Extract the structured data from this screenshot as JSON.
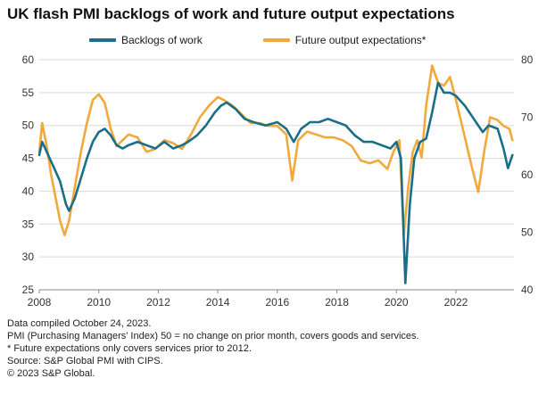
{
  "title": "UK flash PMI backlogs of work and future output expectations",
  "footnotes": [
    "Data compiled October 24, 2023.",
    "PMI (Purchasing Managers' Index) 50 = no change on prior month, covers goods and services.",
    "* Future expectations only covers services prior to 2012.",
    "Source: S&P Global PMI with CIPS.",
    "© 2023 S&P Global."
  ],
  "colors": {
    "backlogs": "#1a6e87",
    "future": "#f2a93b",
    "grid": "#d9d9d9"
  },
  "chart_data": {
    "type": "line",
    "title": "UK flash PMI backlogs of work and future output expectations",
    "x_ticks": [
      "2008",
      "2010",
      "2012",
      "2014",
      "2016",
      "2018",
      "2020",
      "2022"
    ],
    "y_left": {
      "min": 25,
      "max": 60,
      "ticks": [
        25,
        30,
        35,
        40,
        45,
        50,
        55,
        60
      ]
    },
    "y_right": {
      "min": 40,
      "max": 80,
      "ticks": [
        40,
        50,
        60,
        70,
        80
      ]
    },
    "grid": true,
    "legend_position": "top",
    "series": [
      {
        "name": "Backlogs of work",
        "axis": "left",
        "points": [
          [
            2008.0,
            45.5
          ],
          [
            2008.1,
            47.5
          ],
          [
            2008.3,
            45.5
          ],
          [
            2008.5,
            43.5
          ],
          [
            2008.7,
            41.5
          ],
          [
            2008.9,
            38.0
          ],
          [
            2009.0,
            37.0
          ],
          [
            2009.2,
            39.0
          ],
          [
            2009.4,
            42.0
          ],
          [
            2009.6,
            45.0
          ],
          [
            2009.8,
            47.5
          ],
          [
            2010.0,
            49.0
          ],
          [
            2010.2,
            49.5
          ],
          [
            2010.4,
            48.5
          ],
          [
            2010.6,
            47.0
          ],
          [
            2010.8,
            46.5
          ],
          [
            2011.0,
            47.0
          ],
          [
            2011.3,
            47.5
          ],
          [
            2011.6,
            47.0
          ],
          [
            2011.9,
            46.5
          ],
          [
            2012.2,
            47.5
          ],
          [
            2012.5,
            46.5
          ],
          [
            2012.8,
            47.0
          ],
          [
            2013.0,
            47.5
          ],
          [
            2013.3,
            48.5
          ],
          [
            2013.6,
            50.0
          ],
          [
            2013.9,
            52.0
          ],
          [
            2014.1,
            53.0
          ],
          [
            2014.3,
            53.5
          ],
          [
            2014.6,
            52.5
          ],
          [
            2014.9,
            51.0
          ],
          [
            2015.2,
            50.5
          ],
          [
            2015.6,
            50.0
          ],
          [
            2016.0,
            50.5
          ],
          [
            2016.3,
            49.5
          ],
          [
            2016.55,
            47.5
          ],
          [
            2016.8,
            49.5
          ],
          [
            2017.1,
            50.5
          ],
          [
            2017.4,
            50.5
          ],
          [
            2017.7,
            51.0
          ],
          [
            2018.0,
            50.5
          ],
          [
            2018.3,
            50.0
          ],
          [
            2018.6,
            48.5
          ],
          [
            2018.9,
            47.5
          ],
          [
            2019.2,
            47.5
          ],
          [
            2019.5,
            47.0
          ],
          [
            2019.8,
            46.5
          ],
          [
            2020.0,
            47.5
          ],
          [
            2020.15,
            45.0
          ],
          [
            2020.3,
            26.0
          ],
          [
            2020.45,
            38.0
          ],
          [
            2020.6,
            45.0
          ],
          [
            2020.8,
            47.5
          ],
          [
            2021.0,
            48.0
          ],
          [
            2021.2,
            52.0
          ],
          [
            2021.4,
            56.5
          ],
          [
            2021.6,
            55.0
          ],
          [
            2021.8,
            55.0
          ],
          [
            2022.0,
            54.5
          ],
          [
            2022.3,
            53.0
          ],
          [
            2022.6,
            51.0
          ],
          [
            2022.9,
            49.0
          ],
          [
            2023.1,
            50.0
          ],
          [
            2023.4,
            49.5
          ],
          [
            2023.6,
            46.5
          ],
          [
            2023.75,
            43.5
          ],
          [
            2023.9,
            45.5
          ]
        ]
      },
      {
        "name": "Future output expectations*",
        "axis": "right",
        "points": [
          [
            2008.0,
            64.0
          ],
          [
            2008.1,
            69.0
          ],
          [
            2008.25,
            65.0
          ],
          [
            2008.4,
            60.0
          ],
          [
            2008.55,
            56.0
          ],
          [
            2008.7,
            52.0
          ],
          [
            2008.85,
            49.5
          ],
          [
            2009.0,
            52.0
          ],
          [
            2009.2,
            58.0
          ],
          [
            2009.4,
            64.0
          ],
          [
            2009.6,
            69.0
          ],
          [
            2009.8,
            73.0
          ],
          [
            2010.0,
            74.0
          ],
          [
            2010.2,
            72.5
          ],
          [
            2010.4,
            68.0
          ],
          [
            2010.6,
            65.0
          ],
          [
            2010.8,
            66.0
          ],
          [
            2011.0,
            67.0
          ],
          [
            2011.3,
            66.5
          ],
          [
            2011.6,
            64.0
          ],
          [
            2011.9,
            64.5
          ],
          [
            2012.2,
            66.0
          ],
          [
            2012.5,
            65.5
          ],
          [
            2012.8,
            64.5
          ],
          [
            2013.1,
            67.0
          ],
          [
            2013.4,
            70.0
          ],
          [
            2013.7,
            72.0
          ],
          [
            2014.0,
            73.5
          ],
          [
            2014.2,
            73.0
          ],
          [
            2014.5,
            72.0
          ],
          [
            2014.8,
            70.5
          ],
          [
            2015.1,
            69.0
          ],
          [
            2015.4,
            69.0
          ],
          [
            2015.7,
            68.5
          ],
          [
            2016.0,
            68.5
          ],
          [
            2016.3,
            67.0
          ],
          [
            2016.5,
            59.0
          ],
          [
            2016.7,
            66.0
          ],
          [
            2017.0,
            67.5
          ],
          [
            2017.3,
            67.0
          ],
          [
            2017.6,
            66.5
          ],
          [
            2017.9,
            66.5
          ],
          [
            2018.2,
            66.0
          ],
          [
            2018.5,
            65.0
          ],
          [
            2018.8,
            62.5
          ],
          [
            2019.1,
            62.0
          ],
          [
            2019.4,
            62.5
          ],
          [
            2019.7,
            61.0
          ],
          [
            2019.9,
            64.0
          ],
          [
            2020.1,
            66.0
          ],
          [
            2020.25,
            49.5
          ],
          [
            2020.4,
            58.0
          ],
          [
            2020.55,
            64.0
          ],
          [
            2020.7,
            66.0
          ],
          [
            2020.85,
            63.0
          ],
          [
            2021.0,
            72.0
          ],
          [
            2021.2,
            79.0
          ],
          [
            2021.4,
            76.0
          ],
          [
            2021.6,
            75.5
          ],
          [
            2021.8,
            77.0
          ],
          [
            2022.0,
            73.0
          ],
          [
            2022.3,
            66.5
          ],
          [
            2022.55,
            61.0
          ],
          [
            2022.75,
            57.0
          ],
          [
            2022.95,
            64.0
          ],
          [
            2023.15,
            70.0
          ],
          [
            2023.4,
            69.5
          ],
          [
            2023.6,
            68.5
          ],
          [
            2023.8,
            68.0
          ],
          [
            2023.9,
            66.0
          ]
        ]
      }
    ]
  }
}
